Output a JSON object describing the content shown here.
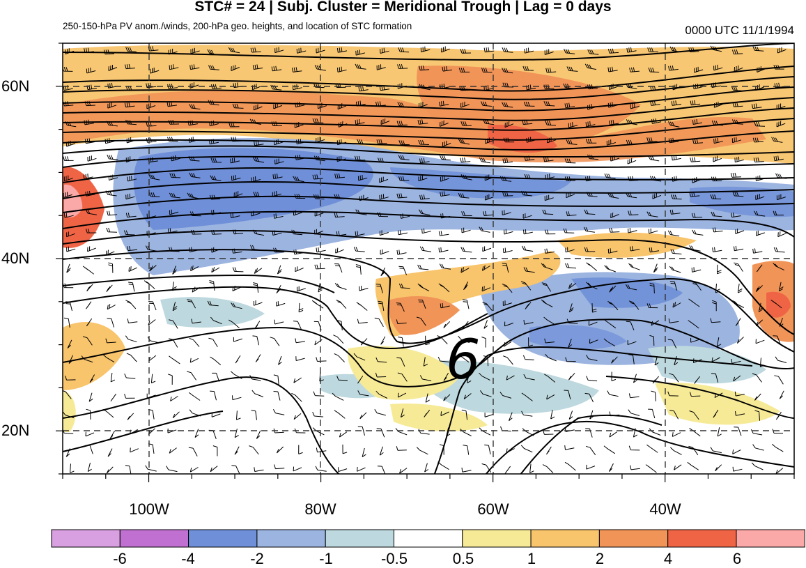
{
  "title": "STC# = 24 | Subj. Cluster = Meridional Trough | Lag = 0 days",
  "subtitle": "250-150-hPa PV anom./winds, 200-hPa geo. heights, and location of STC formation",
  "timestamp": "0000 UTC  11/1/1994",
  "lat_labels": [
    "60N",
    "40N",
    "20N"
  ],
  "lon_labels": [
    "100W",
    "80W",
    "60W",
    "40W"
  ],
  "stc_marker": {
    "symbol": "6",
    "lon": -63.5,
    "lat": 27.3
  },
  "colorbar": {
    "labels": [
      "-6",
      "-4",
      "-2",
      "-1",
      "-0.5",
      "0.5",
      "1",
      "2",
      "4",
      "6"
    ],
    "colors": [
      "#d8a0e0",
      "#c070d0",
      "#6f8fd8",
      "#9cb4e0",
      "#bdd8de",
      "#ffffff",
      "#f6ea96",
      "#f8c46c",
      "#f19458",
      "#f06446",
      "#faa8a8"
    ]
  },
  "map": {
    "lon_range": [
      -110,
      -25
    ],
    "lat_range": [
      15,
      65
    ],
    "grid_lons": [
      -100,
      -80,
      -60,
      -40
    ],
    "grid_lats": [
      60,
      40,
      20
    ]
  }
}
